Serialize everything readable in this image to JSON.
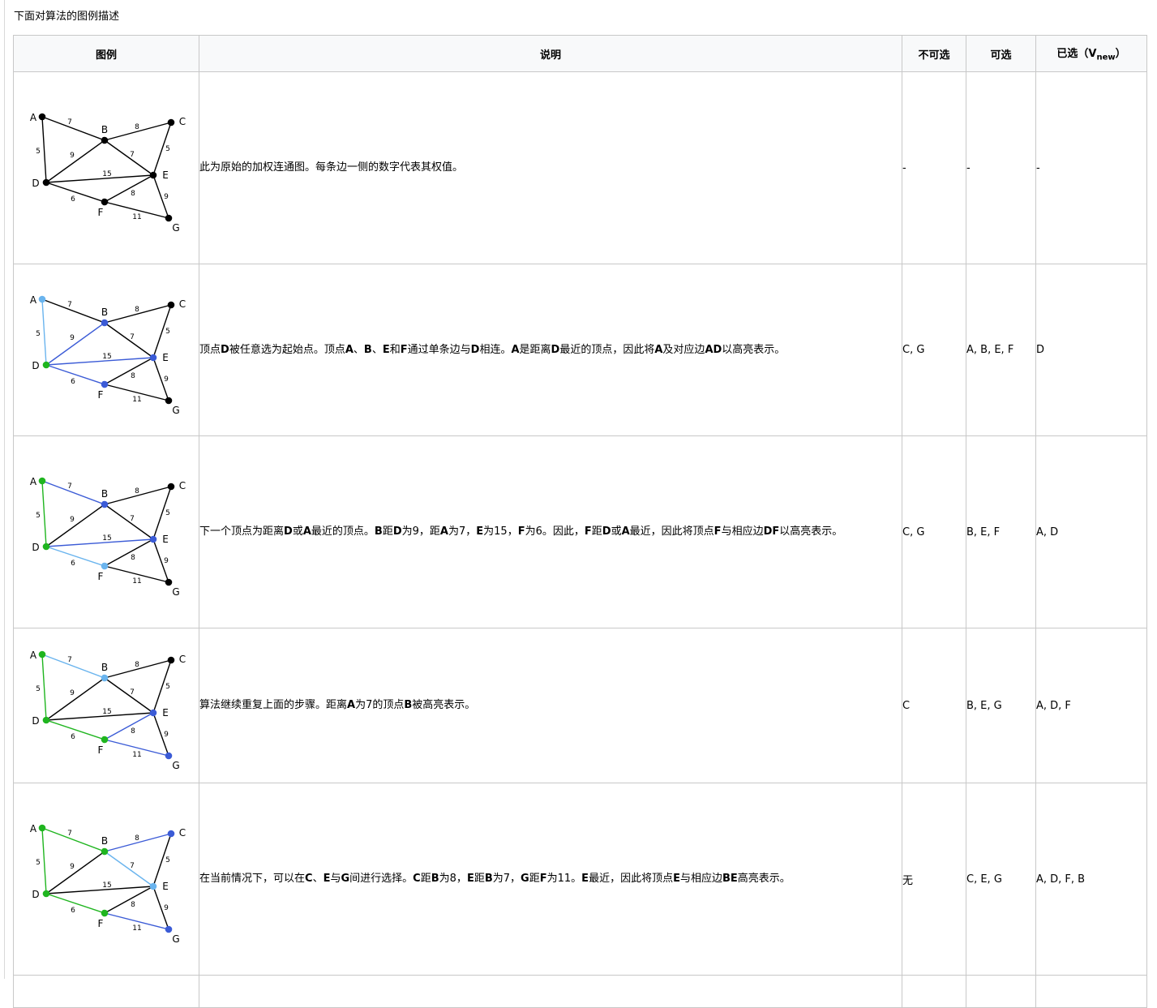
{
  "intro": "下面对算法的图例描述",
  "headers": {
    "figure": "图例",
    "description": "说明",
    "unavailable": "不可选",
    "available": "可选",
    "selected_prefix": "已选（V",
    "selected_sub": "new",
    "selected_suffix": "）"
  },
  "vertices": [
    "A",
    "B",
    "C",
    "D",
    "E",
    "F",
    "G"
  ],
  "edges": [
    {
      "id": "AB",
      "weight": "7"
    },
    {
      "id": "AD",
      "weight": "5"
    },
    {
      "id": "BC",
      "weight": "8"
    },
    {
      "id": "BD",
      "weight": "9"
    },
    {
      "id": "BE",
      "weight": "7"
    },
    {
      "id": "CE",
      "weight": "5"
    },
    {
      "id": "DE",
      "weight": "15"
    },
    {
      "id": "DF",
      "weight": "6"
    },
    {
      "id": "EF",
      "weight": "8"
    },
    {
      "id": "EG",
      "weight": "9"
    },
    {
      "id": "FG",
      "weight": "11"
    }
  ],
  "colors": {
    "default": "#000000",
    "candidate": "#3b5bd6",
    "highlight": "#6ab4ee",
    "selected": "#1fb51f",
    "border": "#c8c8c8",
    "header_bg": "#f8f9fa"
  },
  "rows": [
    {
      "description": [
        "此为原始的加权连通图。每条边一侧的数字代表其权值。"
      ],
      "unavailable": "-",
      "available": "-",
      "selected": "-",
      "vertex_states": {
        "A": "default",
        "B": "default",
        "C": "default",
        "D": "default",
        "E": "default",
        "F": "default",
        "G": "default"
      },
      "edge_states": {
        "AB": "default",
        "AD": "default",
        "BC": "default",
        "BD": "default",
        "BE": "default",
        "CE": "default",
        "DE": "default",
        "DF": "default",
        "EF": "default",
        "EG": "default",
        "FG": "default"
      }
    },
    {
      "description": [
        "顶点",
        "D",
        "被任意选为起始点。顶点",
        "A",
        "、",
        "B",
        "、",
        "E",
        "和",
        "F",
        "通过单条边与",
        "D",
        "相连。",
        "A",
        "是距离",
        "D",
        "最近的顶点，因此将",
        "A",
        "及对应边",
        "AD",
        "以高亮表示。"
      ],
      "unavailable": "C, G",
      "available": "A, B, E, F",
      "selected": "D",
      "vertex_states": {
        "A": "highlight",
        "B": "candidate",
        "C": "default",
        "D": "selected",
        "E": "candidate",
        "F": "candidate",
        "G": "default"
      },
      "edge_states": {
        "AB": "default",
        "AD": "highlight",
        "BC": "default",
        "BD": "candidate",
        "BE": "default",
        "CE": "default",
        "DE": "candidate",
        "DF": "candidate",
        "EF": "default",
        "EG": "default",
        "FG": "default"
      }
    },
    {
      "description": [
        "下一个顶点为距离",
        "D",
        "或",
        "A",
        "最近的顶点。",
        "B",
        "距",
        "D",
        "为9，距",
        "A",
        "为7，",
        "E",
        "为15，",
        "F",
        "为6。因此，",
        "F",
        "距",
        "D",
        "或",
        "A",
        "最近，因此将顶点",
        "F",
        "与相应边",
        "DF",
        "以高亮表示。"
      ],
      "unavailable": "C, G",
      "available": "B, E, F",
      "selected": "A, D",
      "vertex_states": {
        "A": "selected",
        "B": "candidate",
        "C": "default",
        "D": "selected",
        "E": "candidate",
        "F": "highlight",
        "G": "default"
      },
      "edge_states": {
        "AB": "candidate",
        "AD": "selected",
        "BC": "default",
        "BD": "default",
        "BE": "default",
        "CE": "default",
        "DE": "candidate",
        "DF": "highlight",
        "EF": "default",
        "EG": "default",
        "FG": "default"
      }
    },
    {
      "description": [
        "算法继续重复上面的步骤。距离",
        "A",
        "为7的顶点",
        "B",
        "被高亮表示。"
      ],
      "unavailable": "C",
      "available": "B, E, G",
      "selected": "A, D, F",
      "vertex_states": {
        "A": "selected",
        "B": "highlight",
        "C": "default",
        "D": "selected",
        "E": "candidate",
        "F": "selected",
        "G": "candidate"
      },
      "edge_states": {
        "AB": "highlight",
        "AD": "selected",
        "BC": "default",
        "BD": "default",
        "BE": "default",
        "CE": "default",
        "DE": "default",
        "DF": "selected",
        "EF": "candidate",
        "EG": "default",
        "FG": "candidate"
      }
    },
    {
      "description": [
        "在当前情况下，可以在",
        "C",
        "、",
        "E",
        "与",
        "G",
        "间进行选择。",
        "C",
        "距",
        "B",
        "为8，",
        "E",
        "距",
        "B",
        "为7，",
        "G",
        "距",
        "F",
        "为11。",
        "E",
        "最近，因此将顶点",
        "E",
        "与相应边",
        "BE",
        "高亮表示。"
      ],
      "unavailable": "无",
      "available": "C, E, G",
      "selected": "A, D, F, B",
      "vertex_states": {
        "A": "selected",
        "B": "selected",
        "C": "candidate",
        "D": "selected",
        "E": "highlight",
        "F": "selected",
        "G": "candidate"
      },
      "edge_states": {
        "AB": "selected",
        "AD": "selected",
        "BC": "candidate",
        "BD": "default",
        "BE": "highlight",
        "CE": "default",
        "DE": "default",
        "DF": "selected",
        "EF": "default",
        "EG": "default",
        "FG": "candidate"
      }
    }
  ]
}
